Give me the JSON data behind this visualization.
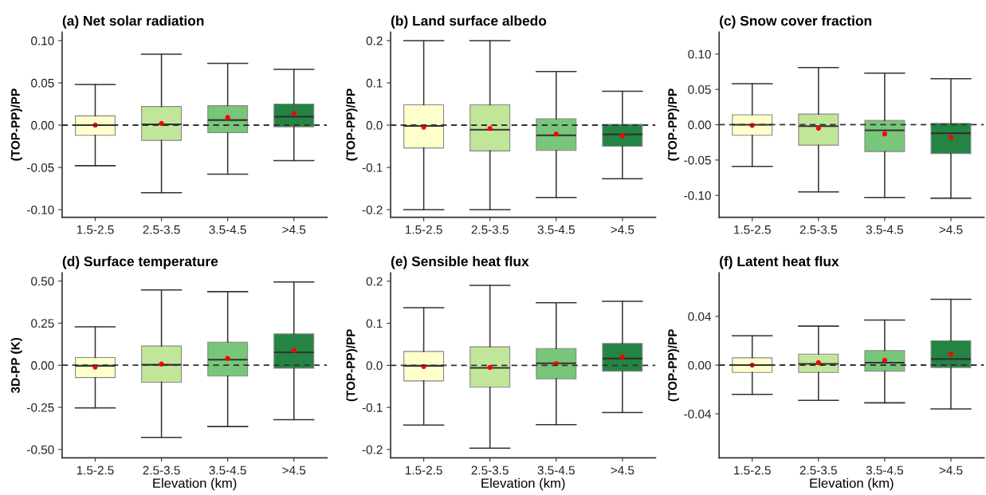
{
  "chart_data": [
    {
      "type": "box",
      "title": "(a) Net solar radiation",
      "ylabel": "(TOP-PP)/PP",
      "categories": [
        "1.5-2.5",
        "2.5-3.5",
        "3.5-4.5",
        ">4.5"
      ],
      "colors": [
        "#ffffcc",
        "#c2e699",
        "#78c679",
        "#238443"
      ],
      "ylim": [
        -0.109,
        0.11
      ],
      "yticks": [
        {
          "value": -0.1,
          "label": "-0.10"
        },
        {
          "value": -0.05,
          "label": "-0.05"
        },
        {
          "value": 0,
          "label": "0.00"
        },
        {
          "value": 0.05,
          "label": "0.05"
        },
        {
          "value": 0.1,
          "label": "0.10"
        }
      ],
      "grid": false,
      "ref_lines": [
        {
          "axis": "y",
          "value": 0,
          "color": "#333333",
          "line_style": "dashed"
        }
      ],
      "boxes": [
        {
          "low": -0.048,
          "q1": -0.012,
          "median": 0.0,
          "q3": 0.011,
          "high": 0.048,
          "mean": 0.0
        },
        {
          "low": -0.08,
          "q1": -0.018,
          "median": 0.001,
          "q3": 0.022,
          "high": 0.084,
          "mean": 0.002
        },
        {
          "low": -0.058,
          "q1": -0.009,
          "median": 0.006,
          "q3": 0.023,
          "high": 0.073,
          "mean": 0.009
        },
        {
          "low": -0.042,
          "q1": -0.002,
          "median": 0.01,
          "q3": 0.025,
          "high": 0.066,
          "mean": 0.014
        }
      ]
    },
    {
      "type": "box",
      "title": "(b) Land surface albedo",
      "ylabel": "(TOP-PP)/PP",
      "categories": [
        "1.5-2.5",
        "2.5-3.5",
        "3.5-4.5",
        ">4.5"
      ],
      "colors": [
        "#ffffcc",
        "#c2e699",
        "#78c679",
        "#238443"
      ],
      "ylim": [
        -0.218,
        0.22
      ],
      "yticks": [
        -0.2,
        -0.1,
        {
          "value": 0,
          "label": "0.0"
        },
        0.1,
        0.2
      ],
      "grid": false,
      "ref_lines": [
        {
          "axis": "y",
          "value": 0,
          "color": "#333333",
          "line_style": "dashed"
        }
      ],
      "boxes": [
        {
          "low": -0.2,
          "q1": -0.054,
          "median": -0.002,
          "q3": 0.048,
          "high": 0.2,
          "mean": -0.005
        },
        {
          "low": -0.2,
          "q1": -0.061,
          "median": -0.011,
          "q3": 0.048,
          "high": 0.2,
          "mean": -0.008
        },
        {
          "low": -0.171,
          "q1": -0.06,
          "median": -0.024,
          "q3": 0.015,
          "high": 0.127,
          "mean": -0.021
        },
        {
          "low": -0.127,
          "q1": -0.05,
          "median": -0.022,
          "q3": 0.002,
          "high": 0.08,
          "mean": -0.025
        }
      ]
    },
    {
      "type": "box",
      "title": "(c) Snow cover fraction",
      "ylabel": "(TOP-PP)/PP",
      "categories": [
        "1.5-2.5",
        "2.5-3.5",
        "3.5-4.5",
        ">4.5"
      ],
      "colors": [
        "#ffffcc",
        "#c2e699",
        "#78c679",
        "#238443"
      ],
      "ylim": [
        -0.131,
        0.131
      ],
      "yticks": [
        {
          "value": -0.1,
          "label": "-0.10"
        },
        {
          "value": -0.05,
          "label": "-0.05"
        },
        {
          "value": 0,
          "label": "0.00"
        },
        {
          "value": 0.05,
          "label": "0.05"
        },
        {
          "value": 0.1,
          "label": "0.10"
        }
      ],
      "grid": false,
      "ref_lines": [
        {
          "axis": "y",
          "value": 0,
          "color": "#333333",
          "line_style": "dashed"
        }
      ],
      "boxes": [
        {
          "low": -0.059,
          "q1": -0.015,
          "median": 0.0,
          "q3": 0.014,
          "high": 0.058,
          "mean": -0.001
        },
        {
          "low": -0.095,
          "q1": -0.029,
          "median": -0.002,
          "q3": 0.015,
          "high": 0.081,
          "mean": -0.005
        },
        {
          "low": -0.103,
          "q1": -0.038,
          "median": -0.008,
          "q3": 0.006,
          "high": 0.073,
          "mean": -0.013
        },
        {
          "low": -0.104,
          "q1": -0.041,
          "median": -0.012,
          "q3": 0.002,
          "high": 0.065,
          "mean": -0.018
        }
      ]
    },
    {
      "type": "box",
      "title": "(d) Surface temperature",
      "xlabel": "Elevation (km)",
      "ylabel": "3D-PP (K)",
      "categories": [
        "1.5-2.5",
        "2.5-3.5",
        "3.5-4.5",
        ">4.5"
      ],
      "colors": [
        "#ffffcc",
        "#c2e699",
        "#78c679",
        "#238443"
      ],
      "ylim": [
        -0.55,
        0.549
      ],
      "yticks": [
        {
          "value": -0.5,
          "label": "-0.50"
        },
        -0.25,
        {
          "value": 0,
          "label": "0.00"
        },
        0.25,
        {
          "value": 0.5,
          "label": "0.50"
        }
      ],
      "grid": false,
      "ref_lines": [
        {
          "axis": "y",
          "value": 0,
          "color": "#333333",
          "line_style": "dashed"
        }
      ],
      "boxes": [
        {
          "low": -0.253,
          "q1": -0.073,
          "median": -0.003,
          "q3": 0.046,
          "high": 0.228,
          "mean": -0.011
        },
        {
          "low": -0.429,
          "q1": -0.101,
          "median": 0.003,
          "q3": 0.114,
          "high": 0.447,
          "mean": 0.007
        },
        {
          "low": -0.364,
          "q1": -0.064,
          "median": 0.033,
          "q3": 0.137,
          "high": 0.437,
          "mean": 0.041
        },
        {
          "low": -0.323,
          "q1": -0.018,
          "median": 0.077,
          "q3": 0.186,
          "high": 0.494,
          "mean": 0.088
        }
      ]
    },
    {
      "type": "box",
      "title": "(e) Sensible heat flux",
      "xlabel": "Elevation (km)",
      "ylabel": "(TOP-PP)/PP",
      "categories": [
        "1.5-2.5",
        "2.5-3.5",
        "3.5-4.5",
        ">4.5"
      ],
      "colors": [
        "#ffffcc",
        "#c2e699",
        "#78c679",
        "#238443"
      ],
      "ylim": [
        -0.22,
        0.22
      ],
      "yticks": [
        -0.2,
        -0.1,
        {
          "value": 0,
          "label": "0.0"
        },
        0.1,
        0.2
      ],
      "grid": false,
      "ref_lines": [
        {
          "axis": "y",
          "value": 0,
          "color": "#333333",
          "line_style": "dashed"
        }
      ],
      "boxes": [
        {
          "low": -0.142,
          "q1": -0.037,
          "median": -0.001,
          "q3": 0.033,
          "high": 0.137,
          "mean": -0.003
        },
        {
          "low": -0.197,
          "q1": -0.052,
          "median": -0.006,
          "q3": 0.044,
          "high": 0.19,
          "mean": -0.005
        },
        {
          "low": -0.141,
          "q1": -0.032,
          "median": 0.005,
          "q3": 0.04,
          "high": 0.149,
          "mean": 0.004
        },
        {
          "low": -0.112,
          "q1": -0.014,
          "median": 0.016,
          "q3": 0.052,
          "high": 0.152,
          "mean": 0.02
        }
      ]
    },
    {
      "type": "box",
      "title": "(f) Latent heat flux",
      "xlabel": "Elevation (km)",
      "ylabel": "(TOP-PP)/PP",
      "categories": [
        "1.5-2.5",
        "2.5-3.5",
        "3.5-4.5",
        ">4.5"
      ],
      "colors": [
        "#ffffcc",
        "#c2e699",
        "#78c679",
        "#238443"
      ],
      "ylim": [
        -0.0762,
        0.0758
      ],
      "yticks": [
        -0.04,
        {
          "value": 0,
          "label": "0.00"
        },
        0.04
      ],
      "grid": false,
      "ref_lines": [
        {
          "axis": "y",
          "value": 0,
          "color": "#333333",
          "line_style": "dashed"
        }
      ],
      "boxes": [
        {
          "low": -0.024,
          "q1": -0.006,
          "median": 0.0,
          "q3": 0.006,
          "high": 0.024,
          "mean": 0.0
        },
        {
          "low": -0.029,
          "q1": -0.006,
          "median": 0.001,
          "q3": 0.009,
          "high": 0.032,
          "mean": 0.002
        },
        {
          "low": -0.031,
          "q1": -0.005,
          "median": 0.002,
          "q3": 0.012,
          "high": 0.037,
          "mean": 0.004
        },
        {
          "low": -0.036,
          "q1": -0.002,
          "median": 0.005,
          "q3": 0.02,
          "high": 0.054,
          "mean": 0.009
        }
      ]
    }
  ]
}
